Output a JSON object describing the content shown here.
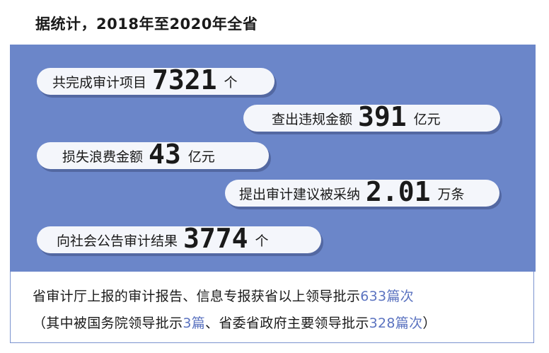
{
  "header": {
    "text": "据统计，2018年至2020年全省"
  },
  "stats": [
    {
      "label": "共完成审计项目",
      "number": "7321",
      "unit": "个"
    },
    {
      "label": "查出违规金额",
      "number": "391",
      "unit": "亿元"
    },
    {
      "label": "损失浪费金额",
      "number": "43",
      "unit": "亿元"
    },
    {
      "label": "提出审计建议被采纳",
      "number": "2.01",
      "unit": "万条"
    },
    {
      "label": "向社会公告审计结果",
      "number": "3774",
      "unit": "个"
    }
  ],
  "footer": {
    "line1_text": "省审计厅上报的审计报告、信息专报获省以上领导批示",
    "line1_highlight": "633篇次",
    "line2_open": "（其中被国务院领导批示",
    "line2_hl1": "3篇",
    "line2_mid": "、省委省政府主要领导批示",
    "line2_hl2": "328篇次",
    "line2_close": "）"
  },
  "colors": {
    "panel_blue": "#6b86c9",
    "pill_bg": "#f4f6fb",
    "highlight": "#5b73c0"
  }
}
